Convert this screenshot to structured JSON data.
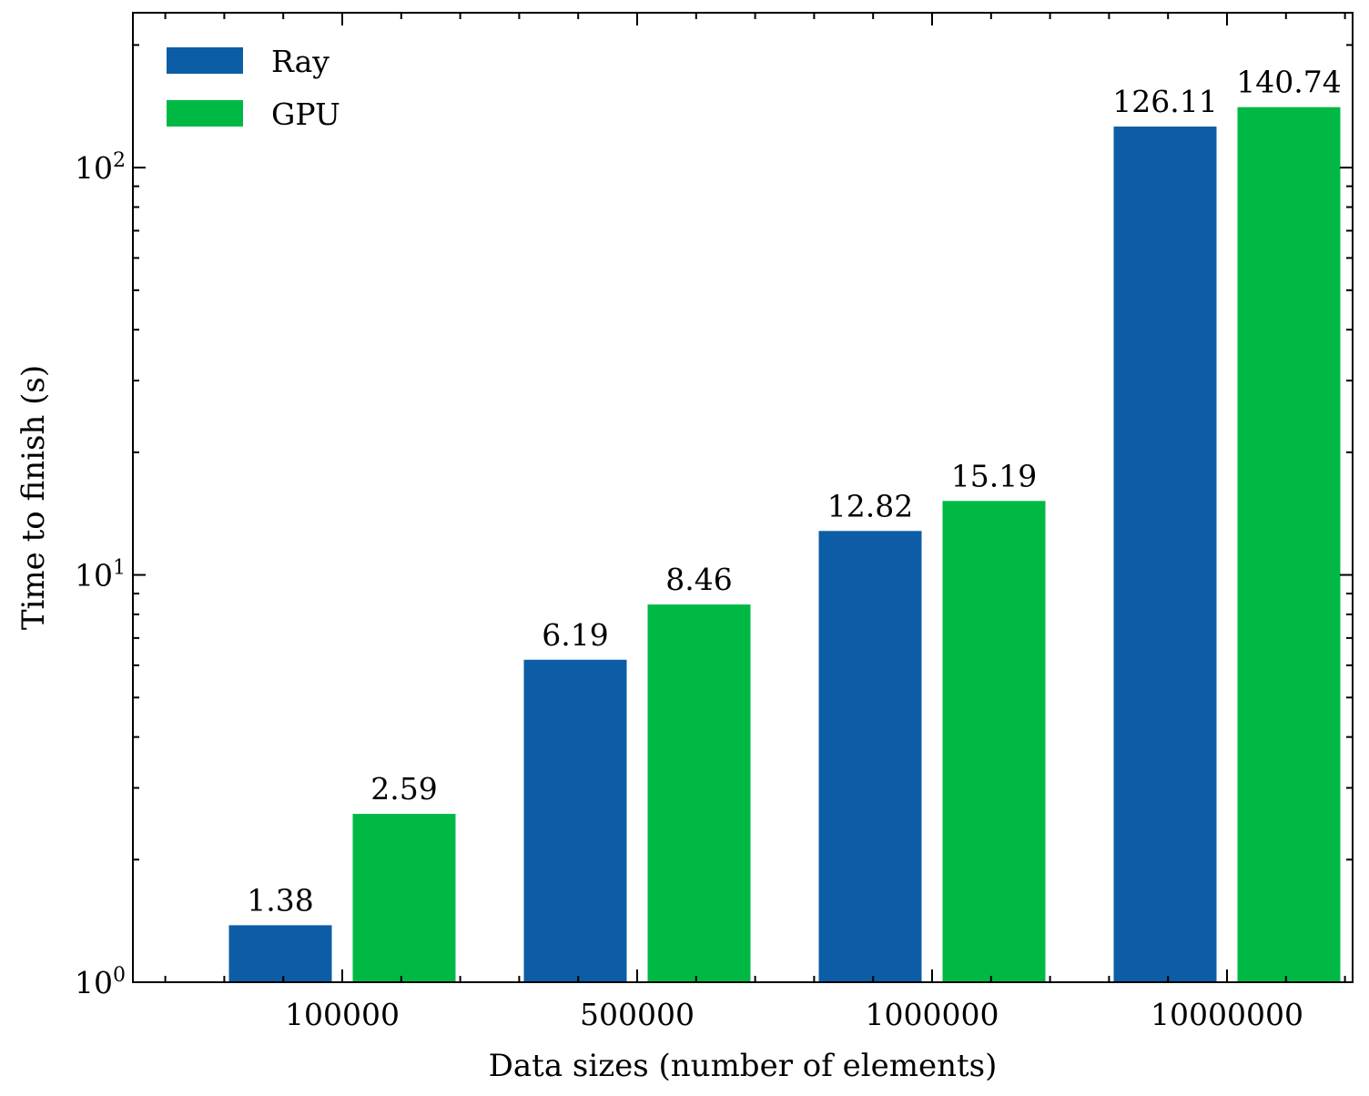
{
  "chart_data": {
    "type": "bar",
    "categories": [
      "100000",
      "500000",
      "1000000",
      "10000000"
    ],
    "series": [
      {
        "name": "Ray",
        "color": "#0C5DA5",
        "values": [
          1.38,
          6.19,
          12.82,
          126.11
        ],
        "labels": [
          "1.38",
          "6.19",
          "12.82",
          "126.11"
        ]
      },
      {
        "name": "GPU",
        "color": "#00B945",
        "values": [
          2.59,
          8.46,
          15.19,
          140.74
        ],
        "labels": [
          "2.59",
          "8.46",
          "15.19",
          "140.74"
        ]
      }
    ],
    "xlabel": "Data sizes (number of elements)",
    "ylabel": "Time to finish (s)",
    "yscale": "log",
    "ylim": [
      1,
      240
    ],
    "yticks": [
      {
        "value": 1,
        "base": "10",
        "exp": "0"
      },
      {
        "value": 10,
        "base": "10",
        "exp": "1"
      },
      {
        "value": 100,
        "base": "10",
        "exp": "2"
      }
    ],
    "legend": "top-left",
    "grid": false
  }
}
